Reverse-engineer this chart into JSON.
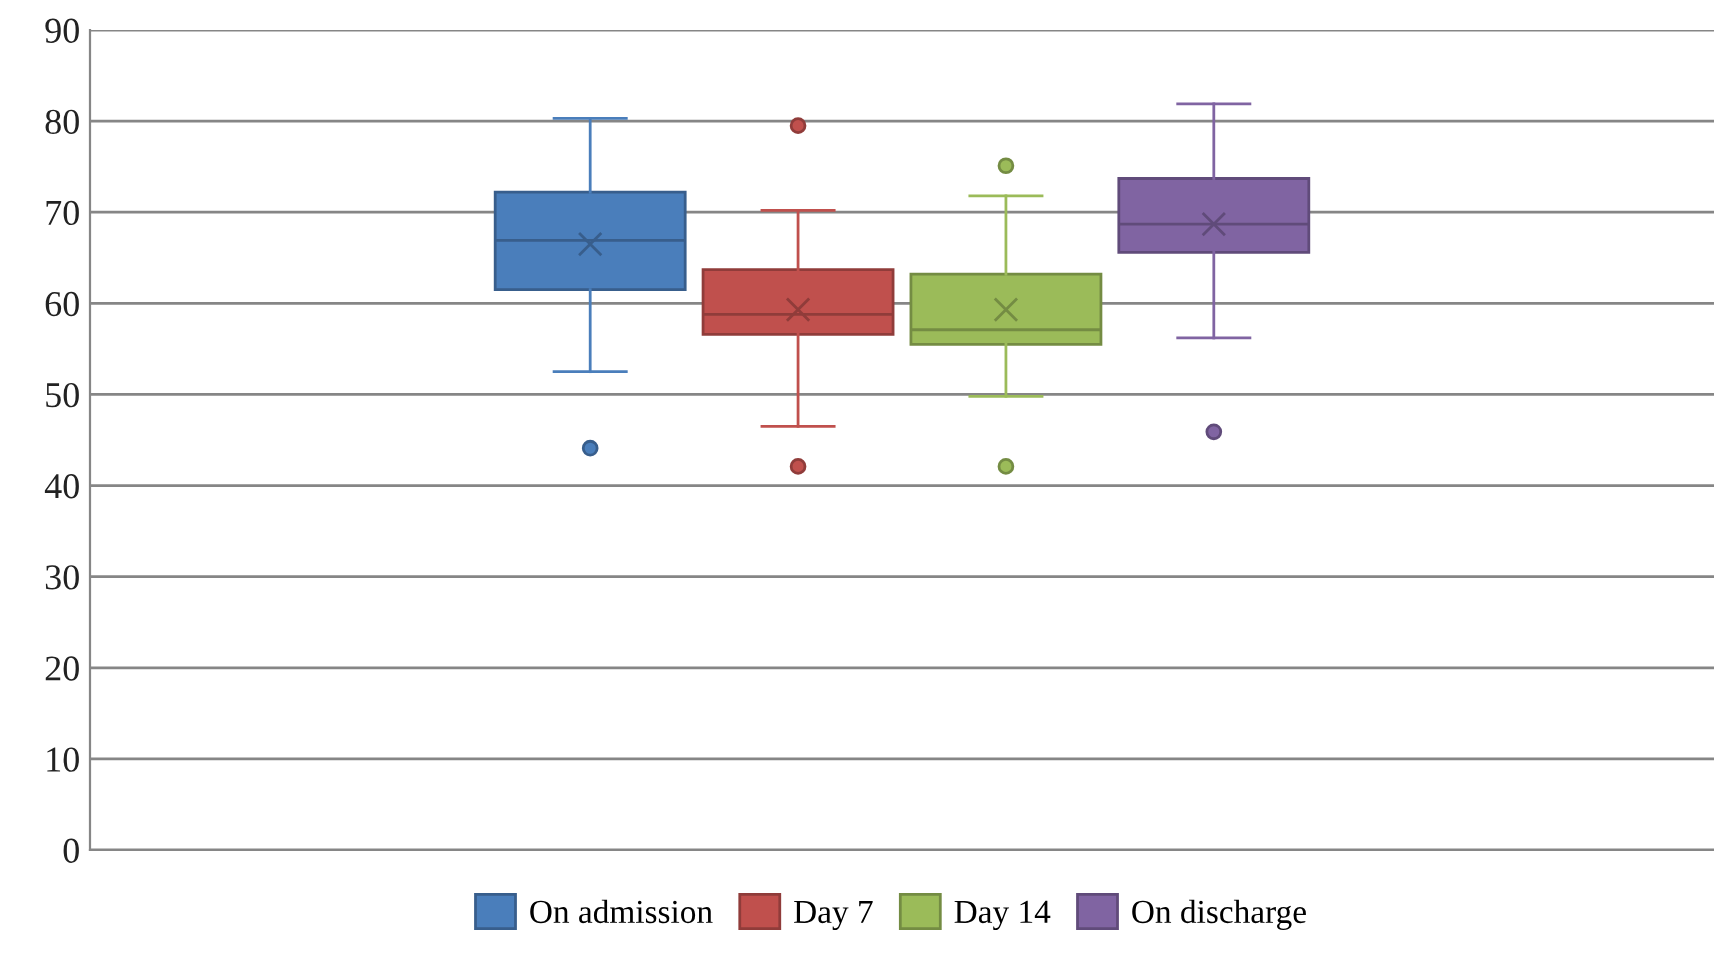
{
  "chart_data": {
    "type": "box",
    "categories": [
      null
    ],
    "ylim": [
      0,
      90
    ],
    "yticks": [
      0,
      10,
      20,
      30,
      40,
      50,
      60,
      70,
      80,
      90
    ],
    "grid": "y",
    "legend": "bottom",
    "series": [
      {
        "name": "On admission",
        "color": "#4a7ebb",
        "boxes": [
          {
            "low": 52.5,
            "q1": 61.5,
            "median": 66.9,
            "q3": 72.2,
            "high": 80.3,
            "mean": 66.5,
            "outliers": [
              44.1
            ]
          }
        ]
      },
      {
        "name": "Day 7",
        "color": "#c0504d",
        "boxes": [
          {
            "low": 46.5,
            "q1": 56.6,
            "median": 58.8,
            "q3": 63.7,
            "high": 70.2,
            "mean": 59.3,
            "outliers": [
              79.5,
              42.1
            ]
          }
        ]
      },
      {
        "name": "Day 14",
        "color": "#9bbb59",
        "boxes": [
          {
            "low": 49.8,
            "q1": 55.5,
            "median": 57.1,
            "q3": 63.2,
            "high": 71.8,
            "mean": 59.3,
            "outliers": [
              75.1,
              42.1
            ]
          }
        ]
      },
      {
        "name": "On discharge",
        "color": "#8064a2",
        "boxes": [
          {
            "low": 56.2,
            "q1": 65.6,
            "median": 68.7,
            "q3": 73.7,
            "high": 81.9,
            "mean": 68.7,
            "outliers": [
              45.9
            ]
          }
        ]
      }
    ]
  }
}
